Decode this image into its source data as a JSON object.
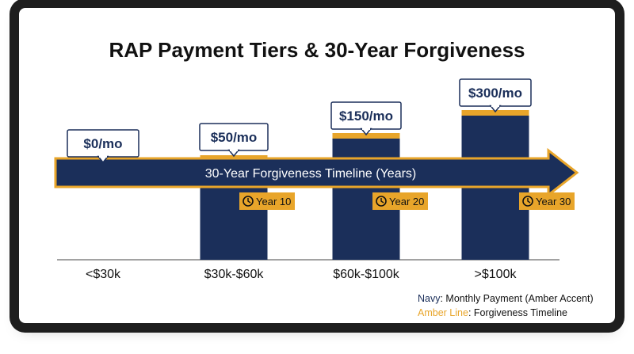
{
  "title": "RAP Payment Tiers & 30-Year Forgiveness",
  "chart_data": {
    "type": "bar",
    "title": "RAP Payment Tiers & 30-Year Forgiveness",
    "categories": [
      "<$30k",
      "$30k-$60k",
      "$60k-$100k",
      ">$100k"
    ],
    "values": [
      0,
      50,
      150,
      300
    ],
    "value_labels": [
      "$0/mo",
      "$50/mo",
      "$150/mo",
      "$300/mo"
    ],
    "timeline": {
      "label": "30-Year Forgiveness Timeline (Years)",
      "markers": [
        "Year 10",
        "Year 20",
        "Year 30"
      ]
    },
    "legend": [
      {
        "key": "Navy",
        "text": ": Monthly Payment (Amber Accent)"
      },
      {
        "key": "Amber Line",
        "text": ": Forgiveness Timeline"
      }
    ],
    "legend_position": "bottom-right",
    "colors": {
      "navy": "#1b2f5a",
      "amber": "#e8a52a"
    }
  }
}
